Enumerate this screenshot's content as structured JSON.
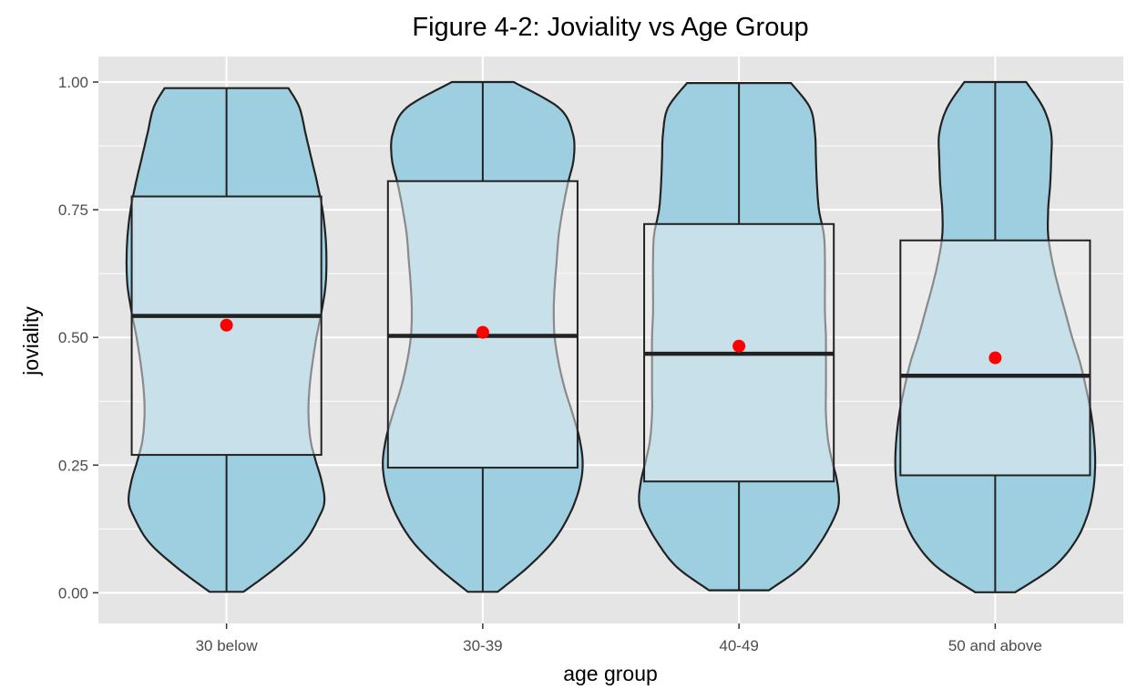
{
  "chart_data": {
    "type": "violin",
    "title": "Figure 4-2: Joviality vs Age Group",
    "xlabel": "age group",
    "ylabel": "joviality",
    "ylim": [
      -0.06,
      1.05
    ],
    "yticks": [
      0.0,
      0.25,
      0.5,
      0.75,
      1.0
    ],
    "ytick_labels": [
      "0.00",
      "0.25",
      "0.50",
      "0.75",
      "1.00"
    ],
    "categories": [
      "30 below",
      "30-39",
      "40-49",
      "50 and above"
    ],
    "grid": true,
    "legend": "none",
    "colors": {
      "panel": "#e5e5e5",
      "grid": "#ffffff",
      "violin_fill": "#9ecfe0",
      "box_fill": "#f2f2f2",
      "box_alpha": 0.5,
      "outline": "#222222",
      "mean_point": "#ff0000"
    },
    "groups": [
      {
        "category": "30 below",
        "mean": 0.524,
        "box": {
          "min": 0.002,
          "q1": 0.27,
          "median": 0.542,
          "q3": 0.776,
          "max": 0.988
        },
        "violin_profile": [
          [
            0.002,
            0.17
          ],
          [
            0.05,
            0.5
          ],
          [
            0.1,
            0.78
          ],
          [
            0.15,
            0.93
          ],
          [
            0.18,
            0.98
          ],
          [
            0.22,
            0.95
          ],
          [
            0.26,
            0.89
          ],
          [
            0.3,
            0.84
          ],
          [
            0.35,
            0.82
          ],
          [
            0.4,
            0.83
          ],
          [
            0.45,
            0.86
          ],
          [
            0.5,
            0.9
          ],
          [
            0.55,
            0.95
          ],
          [
            0.6,
            0.99
          ],
          [
            0.65,
            1.0
          ],
          [
            0.7,
            0.99
          ],
          [
            0.75,
            0.96
          ],
          [
            0.8,
            0.91
          ],
          [
            0.85,
            0.85
          ],
          [
            0.9,
            0.79
          ],
          [
            0.95,
            0.73
          ],
          [
            0.988,
            0.62
          ]
        ]
      },
      {
        "category": "30-39",
        "mean": 0.51,
        "box": {
          "min": 0.002,
          "q1": 0.245,
          "median": 0.503,
          "q3": 0.806,
          "max": 1.0
        },
        "violin_profile": [
          [
            0.002,
            0.15
          ],
          [
            0.05,
            0.45
          ],
          [
            0.1,
            0.7
          ],
          [
            0.15,
            0.86
          ],
          [
            0.2,
            0.96
          ],
          [
            0.25,
            1.0
          ],
          [
            0.3,
            0.97
          ],
          [
            0.35,
            0.9
          ],
          [
            0.4,
            0.82
          ],
          [
            0.45,
            0.76
          ],
          [
            0.5,
            0.72
          ],
          [
            0.55,
            0.71
          ],
          [
            0.6,
            0.72
          ],
          [
            0.65,
            0.74
          ],
          [
            0.7,
            0.76
          ],
          [
            0.75,
            0.8
          ],
          [
            0.8,
            0.85
          ],
          [
            0.85,
            0.91
          ],
          [
            0.9,
            0.9
          ],
          [
            0.95,
            0.76
          ],
          [
            1.0,
            0.31
          ]
        ]
      },
      {
        "category": "40-49",
        "mean": 0.483,
        "box": {
          "min": 0.005,
          "q1": 0.218,
          "median": 0.468,
          "q3": 0.722,
          "max": 0.998
        },
        "violin_profile": [
          [
            0.005,
            0.3
          ],
          [
            0.05,
            0.62
          ],
          [
            0.1,
            0.82
          ],
          [
            0.15,
            0.96
          ],
          [
            0.18,
            1.0
          ],
          [
            0.22,
            0.98
          ],
          [
            0.26,
            0.93
          ],
          [
            0.3,
            0.89
          ],
          [
            0.35,
            0.87
          ],
          [
            0.4,
            0.87
          ],
          [
            0.45,
            0.87
          ],
          [
            0.5,
            0.87
          ],
          [
            0.55,
            0.86
          ],
          [
            0.6,
            0.86
          ],
          [
            0.65,
            0.86
          ],
          [
            0.7,
            0.85
          ],
          [
            0.75,
            0.8
          ],
          [
            0.8,
            0.78
          ],
          [
            0.85,
            0.77
          ],
          [
            0.9,
            0.76
          ],
          [
            0.95,
            0.71
          ],
          [
            0.998,
            0.52
          ]
        ]
      },
      {
        "category": "50 and above",
        "mean": 0.46,
        "box": {
          "min": 0.001,
          "q1": 0.23,
          "median": 0.425,
          "q3": 0.69,
          "max": 1.0
        },
        "violin_profile": [
          [
            0.001,
            0.2
          ],
          [
            0.05,
            0.58
          ],
          [
            0.1,
            0.8
          ],
          [
            0.15,
            0.92
          ],
          [
            0.2,
            0.98
          ],
          [
            0.25,
            1.0
          ],
          [
            0.3,
            0.99
          ],
          [
            0.35,
            0.96
          ],
          [
            0.4,
            0.91
          ],
          [
            0.45,
            0.85
          ],
          [
            0.5,
            0.77
          ],
          [
            0.55,
            0.7
          ],
          [
            0.6,
            0.63
          ],
          [
            0.65,
            0.57
          ],
          [
            0.7,
            0.53
          ],
          [
            0.75,
            0.53
          ],
          [
            0.8,
            0.55
          ],
          [
            0.85,
            0.56
          ],
          [
            0.9,
            0.56
          ],
          [
            0.95,
            0.48
          ],
          [
            1.0,
            0.31
          ]
        ]
      }
    ]
  }
}
